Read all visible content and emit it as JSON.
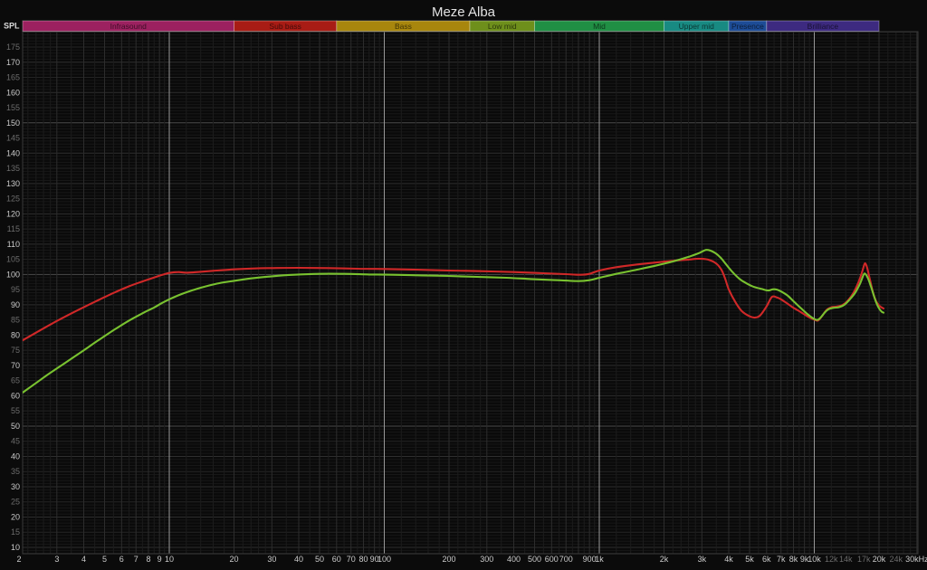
{
  "window": {
    "title": "Meze Alba"
  },
  "corner_label": "SPL",
  "chart_data": {
    "type": "line",
    "title": "Meze Alba",
    "x_axis": {
      "scale": "log",
      "unit": "Hz",
      "min": 2,
      "max": 30000,
      "ticks": [
        {
          "f": 2,
          "label": "2"
        },
        {
          "f": 3,
          "label": "3"
        },
        {
          "f": 4,
          "label": "4"
        },
        {
          "f": 5,
          "label": "5"
        },
        {
          "f": 6,
          "label": "6"
        },
        {
          "f": 7,
          "label": "7"
        },
        {
          "f": 8,
          "label": "8"
        },
        {
          "f": 9,
          "label": "9"
        },
        {
          "f": 10,
          "label": "10"
        },
        {
          "f": 20,
          "label": "20"
        },
        {
          "f": 30,
          "label": "30"
        },
        {
          "f": 40,
          "label": "40"
        },
        {
          "f": 50,
          "label": "50"
        },
        {
          "f": 60,
          "label": "60"
        },
        {
          "f": 70,
          "label": "70"
        },
        {
          "f": 80,
          "label": "80"
        },
        {
          "f": 90,
          "label": "90"
        },
        {
          "f": 100,
          "label": "100"
        },
        {
          "f": 200,
          "label": "200"
        },
        {
          "f": 300,
          "label": "300"
        },
        {
          "f": 400,
          "label": "400"
        },
        {
          "f": 500,
          "label": "500"
        },
        {
          "f": 600,
          "label": "600"
        },
        {
          "f": 700,
          "label": "700"
        },
        {
          "f": 900,
          "label": "900"
        },
        {
          "f": 1000,
          "label": "1k"
        },
        {
          "f": 2000,
          "label": "2k"
        },
        {
          "f": 3000,
          "label": "3k"
        },
        {
          "f": 4000,
          "label": "4k"
        },
        {
          "f": 5000,
          "label": "5k"
        },
        {
          "f": 6000,
          "label": "6k"
        },
        {
          "f": 7000,
          "label": "7k"
        },
        {
          "f": 8000,
          "label": "8k"
        },
        {
          "f": 9000,
          "label": "9k"
        },
        {
          "f": 10000,
          "label": "10k"
        },
        {
          "f": 12000,
          "label": "12k",
          "dim": true
        },
        {
          "f": 14000,
          "label": "14k",
          "dim": true
        },
        {
          "f": 17000,
          "label": "17k",
          "dim": true
        },
        {
          "f": 20000,
          "label": "20k"
        },
        {
          "f": 24000,
          "label": "24k",
          "dim": true
        },
        {
          "f": 30000,
          "label": "30kHz"
        }
      ]
    },
    "y_axis": {
      "label": "SPL",
      "unit": "dB",
      "min": 8,
      "max": 180,
      "tick_min": 10,
      "tick_max": 175,
      "tick_step": 5,
      "dim_labels": "multiples of 5 that are not multiples of 10"
    },
    "bands": [
      {
        "label": "Infrasound",
        "from": 2,
        "to": 20,
        "color": "#9c2160"
      },
      {
        "label": "Sub bass",
        "from": 20,
        "to": 60,
        "color": "#a81c15"
      },
      {
        "label": "Bass",
        "from": 60,
        "to": 250,
        "color": "#a8860d"
      },
      {
        "label": "Low mid",
        "from": 250,
        "to": 500,
        "color": "#6e8f1b"
      },
      {
        "label": "Mid",
        "from": 500,
        "to": 2000,
        "color": "#208f44"
      },
      {
        "label": "Upper mid",
        "from": 2000,
        "to": 4000,
        "color": "#188a82"
      },
      {
        "label": "Presence",
        "from": 4000,
        "to": 6000,
        "color": "#1d4c96"
      },
      {
        "label": "Brilliance",
        "from": 6000,
        "to": 20000,
        "color": "#3d2a80"
      }
    ],
    "series": [
      {
        "name": "red trace",
        "color": "#d02828",
        "points": [
          [
            2,
            77.6
          ],
          [
            2.4,
            80.8
          ],
          [
            2.8,
            83.5
          ],
          [
            3.3,
            86.2
          ],
          [
            4,
            89.2
          ],
          [
            4.7,
            91.6
          ],
          [
            5.5,
            93.9
          ],
          [
            6.5,
            96.1
          ],
          [
            7.5,
            97.7
          ],
          [
            8.5,
            99
          ],
          [
            9.2,
            99.8
          ],
          [
            10,
            100.5
          ],
          [
            11,
            100.8
          ],
          [
            12,
            100.6
          ],
          [
            13.5,
            100.8
          ],
          [
            16,
            101.2
          ],
          [
            20,
            101.7
          ],
          [
            25,
            102
          ],
          [
            30,
            102.1
          ],
          [
            40,
            102.2
          ],
          [
            55,
            102.1
          ],
          [
            75,
            101.9
          ],
          [
            100,
            101.8
          ],
          [
            140,
            101.6
          ],
          [
            200,
            101.3
          ],
          [
            280,
            101.1
          ],
          [
            400,
            100.8
          ],
          [
            550,
            100.4
          ],
          [
            700,
            100.1
          ],
          [
            820,
            99.9
          ],
          [
            900,
            100.2
          ],
          [
            1000,
            101.3
          ],
          [
            1200,
            102.4
          ],
          [
            1500,
            103.3
          ],
          [
            1800,
            103.9
          ],
          [
            2200,
            104.5
          ],
          [
            2600,
            104.9
          ],
          [
            2900,
            105.2
          ],
          [
            3200,
            104.9
          ],
          [
            3500,
            103.6
          ],
          [
            3700,
            101.5
          ],
          [
            3850,
            98.6
          ],
          [
            4000,
            95.1
          ],
          [
            4300,
            90.8
          ],
          [
            4600,
            87.9
          ],
          [
            5000,
            86.2
          ],
          [
            5300,
            85.8
          ],
          [
            5600,
            86.5
          ],
          [
            6000,
            89.5
          ],
          [
            6350,
            92.6
          ],
          [
            6700,
            92.4
          ],
          [
            7000,
            91.8
          ],
          [
            7500,
            90.4
          ],
          [
            8000,
            89
          ],
          [
            8700,
            87.5
          ],
          [
            9400,
            86
          ],
          [
            10000,
            85.1
          ],
          [
            10400,
            84.8
          ],
          [
            10900,
            86.4
          ],
          [
            11400,
            88.3
          ],
          [
            12000,
            89.2
          ],
          [
            12700,
            89.4
          ],
          [
            13500,
            89.9
          ],
          [
            14300,
            91.3
          ],
          [
            15200,
            93.9
          ],
          [
            16000,
            97.2
          ],
          [
            16700,
            100.9
          ],
          [
            17100,
            103.3
          ],
          [
            17300,
            103.6
          ],
          [
            17600,
            102.3
          ],
          [
            18200,
            97.9
          ],
          [
            18800,
            93.8
          ],
          [
            19400,
            91.1
          ],
          [
            20000,
            89.8
          ],
          [
            20500,
            89.2
          ],
          [
            21000,
            88.8
          ]
        ]
      },
      {
        "name": "green trace",
        "color": "#79c230",
        "points": [
          [
            2,
            60.2
          ],
          [
            2.4,
            64.2
          ],
          [
            2.8,
            67.6
          ],
          [
            3.3,
            71
          ],
          [
            4,
            75
          ],
          [
            4.7,
            78.4
          ],
          [
            5.5,
            81.6
          ],
          [
            6.5,
            84.8
          ],
          [
            7.5,
            87.2
          ],
          [
            8.5,
            89.1
          ],
          [
            9.2,
            90.5
          ],
          [
            10,
            91.8
          ],
          [
            11,
            93.1
          ],
          [
            12,
            94.1
          ],
          [
            13.5,
            95.3
          ],
          [
            15,
            96.2
          ],
          [
            17,
            97.1
          ],
          [
            20,
            97.9
          ],
          [
            24,
            98.7
          ],
          [
            30,
            99.4
          ],
          [
            38,
            99.9
          ],
          [
            50,
            100.2
          ],
          [
            65,
            100.2
          ],
          [
            85,
            100
          ],
          [
            110,
            99.9
          ],
          [
            150,
            99.7
          ],
          [
            200,
            99.5
          ],
          [
            270,
            99.2
          ],
          [
            370,
            98.9
          ],
          [
            480,
            98.5
          ],
          [
            600,
            98.2
          ],
          [
            700,
            98
          ],
          [
            800,
            97.8
          ],
          [
            900,
            98.1
          ],
          [
            1000,
            98.9
          ],
          [
            1200,
            100.2
          ],
          [
            1500,
            101.6
          ],
          [
            1850,
            103
          ],
          [
            2200,
            104.3
          ],
          [
            2600,
            105.8
          ],
          [
            2900,
            107
          ],
          [
            3150,
            108.1
          ],
          [
            3400,
            107.4
          ],
          [
            3650,
            105.7
          ],
          [
            3900,
            103.2
          ],
          [
            4150,
            100.9
          ],
          [
            4500,
            98.5
          ],
          [
            4800,
            97.2
          ],
          [
            5200,
            96
          ],
          [
            5700,
            95.2
          ],
          [
            6100,
            94.7
          ],
          [
            6400,
            95.1
          ],
          [
            6700,
            95
          ],
          [
            7000,
            94.4
          ],
          [
            7500,
            93.1
          ],
          [
            8000,
            91.2
          ],
          [
            8600,
            89.1
          ],
          [
            9200,
            87.2
          ],
          [
            9800,
            85.7
          ],
          [
            10300,
            85
          ],
          [
            10700,
            85.8
          ],
          [
            11200,
            87.5
          ],
          [
            11700,
            88.6
          ],
          [
            12300,
            89
          ],
          [
            13000,
            89.2
          ],
          [
            13800,
            90
          ],
          [
            14600,
            91.7
          ],
          [
            15500,
            94
          ],
          [
            16300,
            96.9
          ],
          [
            16900,
            99.7
          ],
          [
            17200,
            100.3
          ],
          [
            17700,
            99
          ],
          [
            18300,
            96.3
          ],
          [
            18900,
            93.1
          ],
          [
            19500,
            90.4
          ],
          [
            20100,
            88.6
          ],
          [
            20600,
            87.7
          ],
          [
            21000,
            87.4
          ]
        ]
      }
    ],
    "grid": {
      "bg": "#0b0b0b",
      "plot_bg": "#0a0a0a",
      "minor_h": "#171717",
      "five_h": "#242424",
      "ten_h": "#2e2e2e",
      "fifty_h": "#4b4b4b",
      "sub_v": "#1c1c1c",
      "mantissa_v": "#2d2d2d",
      "decade_v": "#989898",
      "border": "#3a3a3a",
      "tick_bright": "#cbcbcb",
      "tick_dim": "#6c6c6c",
      "title_color": "#e2e2e2",
      "band_text": "rgba(0,0,0,0.62)",
      "band_border": "rgba(255,255,255,0.32)"
    }
  }
}
